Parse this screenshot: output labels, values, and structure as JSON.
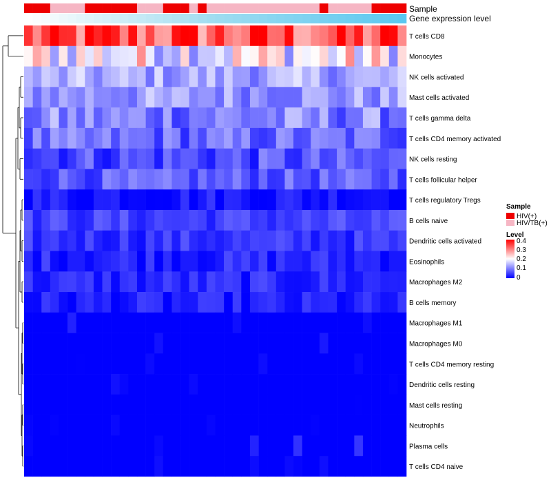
{
  "chart_data": {
    "type": "heatmap",
    "annotation_labels": {
      "sample": "Sample",
      "gene": "Gene expression level"
    },
    "rows": [
      "T cells CD8",
      "Monocytes",
      "NK cells activated",
      "Mast cells activated",
      "T cells gamma delta",
      "T cells CD4 memory activated",
      "NK cells resting",
      "T cells follicular helper",
      "T cells regulatory  Tregs",
      "B cells naive",
      "Dendritic cells activated",
      "Eosinophils",
      "Macrophages M2",
      "B cells memory",
      "Macrophages M1",
      "Macrophages M0",
      "T cells CD4 memory resting",
      "Dendritic cells resting",
      "Mast cells resting",
      "Neutrophils",
      "Plasma cells",
      "T cells CD4 naive"
    ],
    "n_samples": 44,
    "sample_groups": [
      0,
      0,
      0,
      1,
      1,
      1,
      1,
      0,
      0,
      0,
      0,
      0,
      0,
      1,
      1,
      1,
      0,
      0,
      0,
      1,
      0,
      1,
      1,
      1,
      1,
      1,
      1,
      1,
      1,
      1,
      1,
      1,
      1,
      1,
      0,
      1,
      1,
      1,
      1,
      1,
      0,
      0,
      0,
      0
    ],
    "gene_level_gradient": [
      "#ffffff",
      "#9fdcf0",
      "#5bc8f0"
    ],
    "row_means": [
      0.33,
      0.2,
      0.13,
      0.12,
      0.1,
      0.08,
      0.06,
      0.07,
      0.02,
      0.05,
      0.04,
      0.03,
      0.03,
      0.02,
      0.01,
      0.01,
      0.005,
      0.004,
      0.003,
      0.002,
      0.02,
      0.003
    ],
    "row_spread": [
      0.1,
      0.1,
      0.05,
      0.05,
      0.06,
      0.05,
      0.05,
      0.04,
      0.03,
      0.03,
      0.03,
      0.03,
      0.03,
      0.03,
      0.02,
      0.02,
      0.01,
      0.01,
      0.01,
      0.005,
      0.03,
      0.01
    ],
    "dendrogram_merges": [
      [
        12,
        13
      ],
      [
        6,
        7
      ],
      [
        4,
        5
      ],
      [
        2,
        3
      ],
      [
        14,
        15
      ],
      [
        16,
        17
      ],
      [
        18,
        19
      ],
      [
        20,
        21
      ],
      [
        8,
        9
      ],
      [
        10,
        11
      ],
      [
        0,
        1
      ]
    ],
    "legend": {
      "sample_title": "Sample",
      "sample_items": [
        {
          "label": "HIV(+)",
          "color": "#ee0000"
        },
        {
          "label": "HIV/TB(+)",
          "color": "#f6b6c4"
        }
      ],
      "level_title": "Level",
      "level_ticks": [
        "0.4",
        "0.3",
        "0.2",
        "0.1",
        "0"
      ],
      "level_range": [
        0,
        0.4
      ],
      "level_colors": [
        "#0000ff",
        "#ffffff",
        "#ff0000"
      ]
    }
  }
}
